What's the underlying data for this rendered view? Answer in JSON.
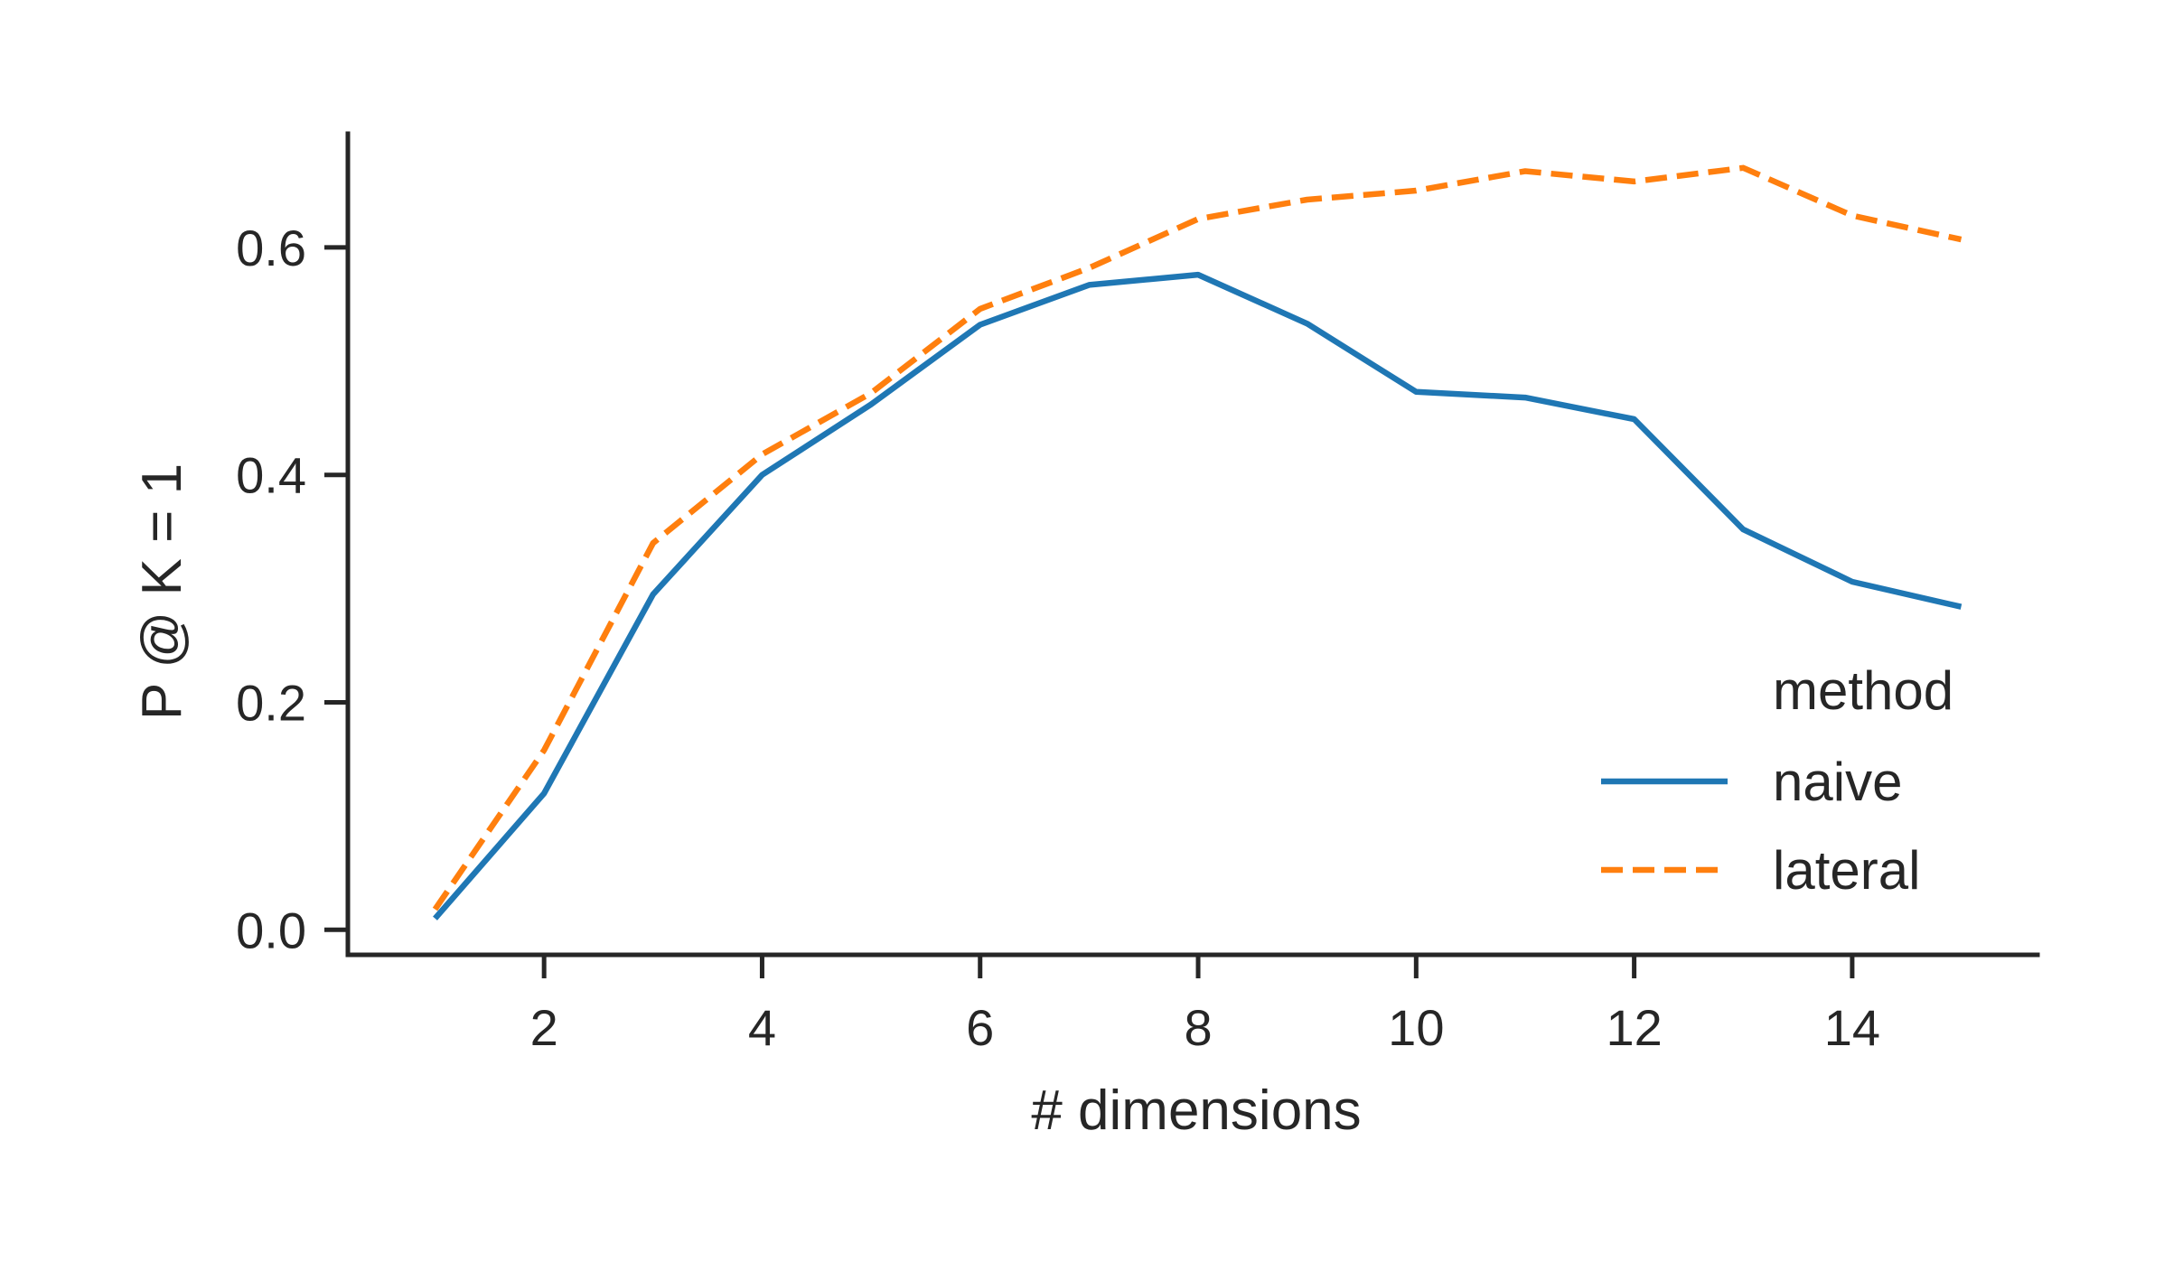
{
  "chart_data": {
    "type": "line",
    "xlabel": "# dimensions",
    "ylabel": "P @ K = 1",
    "xlim": [
      0.2,
      15.7
    ],
    "ylim": [
      -0.022,
      0.7
    ],
    "xticks": [
      2,
      4,
      6,
      8,
      10,
      12,
      14
    ],
    "yticks": [
      0.0,
      0.2,
      0.4,
      0.6
    ],
    "ytick_labels": [
      "0.0",
      "0.2",
      "0.4",
      "0.6"
    ],
    "grid": false,
    "legend": {
      "title": "method",
      "position": "lower-right"
    },
    "x": [
      1,
      2,
      3,
      4,
      5,
      6,
      7,
      8,
      9,
      10,
      11,
      12,
      13,
      14,
      15
    ],
    "series": [
      {
        "name": "naive",
        "style": "solid",
        "color": "#1f77b4",
        "values": [
          0.01,
          0.12,
          0.295,
          0.4,
          0.462,
          0.532,
          0.567,
          0.576,
          0.533,
          0.473,
          0.468,
          0.449,
          0.352,
          0.306,
          0.284
        ]
      },
      {
        "name": "lateral",
        "style": "dashed",
        "color": "#ff7f0e",
        "values": [
          0.018,
          0.158,
          0.34,
          0.418,
          0.472,
          0.546,
          0.582,
          0.625,
          0.642,
          0.65,
          0.667,
          0.658,
          0.67,
          0.628,
          0.607
        ]
      }
    ]
  }
}
